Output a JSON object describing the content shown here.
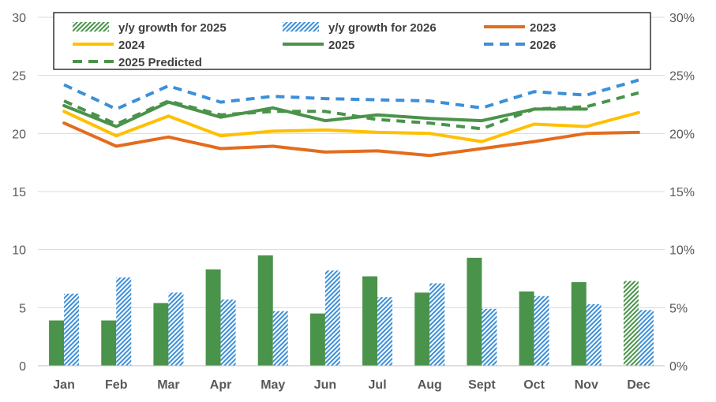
{
  "chart_data": {
    "type": "bar+line",
    "categories": [
      "Jan",
      "Feb",
      "Mar",
      "Apr",
      "May",
      "Jun",
      "Jul",
      "Aug",
      "Sept",
      "Oct",
      "Nov",
      "Dec"
    ],
    "y_left": {
      "min": 0,
      "max": 30,
      "ticks": [
        "0",
        "5",
        "10",
        "15",
        "20",
        "25",
        "30"
      ]
    },
    "y_right": {
      "min": 0,
      "max": 0.3,
      "ticks": [
        "0%",
        "5%",
        "10%",
        "15%",
        "20%",
        "25%",
        "30%"
      ]
    },
    "bars": [
      {
        "name": "y/y growth for 2025",
        "axis": "right",
        "color": "#4a934a",
        "values": [
          0.039,
          0.039,
          0.054,
          0.083,
          0.095,
          0.045,
          0.077,
          0.063,
          0.093,
          0.064,
          0.072,
          0.073
        ],
        "hatched_index": 11
      },
      {
        "name": "y/y growth for 2026",
        "axis": "right",
        "color": "#3c8fd8",
        "pattern": "hatch",
        "values": [
          0.062,
          0.076,
          0.063,
          0.057,
          0.047,
          0.082,
          0.059,
          0.071,
          0.049,
          0.06,
          0.053,
          0.048
        ]
      }
    ],
    "lines": [
      {
        "name": "2023",
        "color": "#e36c1e",
        "dash": "solid",
        "values": [
          20.9,
          18.9,
          19.7,
          18.7,
          18.9,
          18.4,
          18.5,
          18.1,
          18.7,
          19.3,
          20.0,
          20.1
        ]
      },
      {
        "name": "2024",
        "color": "#ffc000",
        "dash": "solid",
        "values": [
          21.9,
          19.8,
          21.5,
          19.8,
          20.2,
          20.3,
          20.1,
          20.0,
          19.3,
          20.8,
          20.6,
          21.8
        ]
      },
      {
        "name": "2025",
        "color": "#4a934a",
        "dash": "solid",
        "values": [
          22.4,
          20.6,
          22.7,
          21.4,
          22.2,
          21.1,
          21.6,
          21.3,
          21.1,
          22.1,
          22.1,
          null
        ]
      },
      {
        "name": "2026",
        "color": "#3c8fd8",
        "dash": "dashed",
        "values": [
          24.2,
          22.1,
          24.1,
          22.7,
          23.2,
          23.0,
          22.9,
          22.8,
          22.2,
          23.6,
          23.3,
          24.6
        ]
      },
      {
        "name": "2025 Predicted",
        "color": "#4a934a",
        "dash": "dashed",
        "values": [
          22.8,
          20.8,
          22.8,
          21.6,
          21.9,
          21.9,
          21.2,
          20.9,
          20.4,
          22.1,
          22.3,
          23.5
        ]
      }
    ],
    "legend": {
      "position": "top",
      "entries": [
        "y/y growth for 2025",
        "y/y growth for 2026",
        "2023",
        "2024",
        "2025",
        "2026",
        "2025 Predicted"
      ]
    }
  }
}
